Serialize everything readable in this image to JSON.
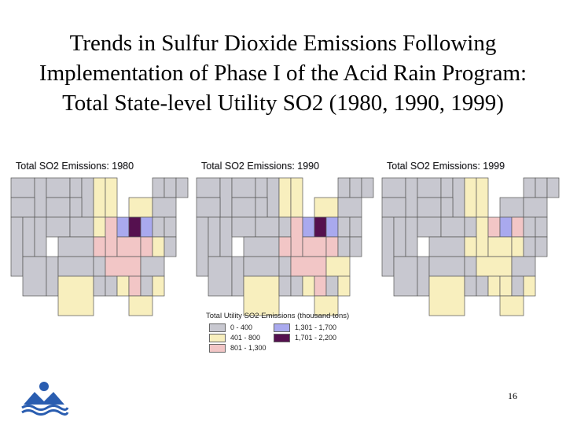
{
  "slide": {
    "title_lines": [
      "Trends in Sulfur Dioxide Emissions Following",
      "Implementation of Phase I of the Acid Rain Program:",
      "Total State-level Utility SO2 (1980, 1990, 1999)"
    ],
    "page_number": "16"
  },
  "maps": [
    {
      "caption": "Total SO2 Emissions: 1980",
      "class_by_state": {
        "OH": 4,
        "IN": 3,
        "PA": 3,
        "IL": 2,
        "MO": 2,
        "KY": 2,
        "WV": 2,
        "TN": 2,
        "GA": 2,
        "WI": 1,
        "MI": 1,
        "IA": 1,
        "NY": 1,
        "TX": 1,
        "AL": 1,
        "FL": 1,
        "NC": 1,
        "MD": 1
      }
    },
    {
      "caption": "Total SO2 Emissions: 1990",
      "class_by_state": {
        "OH": 4,
        "IN": 3,
        "PA": 3,
        "IL": 2,
        "MO": 2,
        "KY": 2,
        "WV": 2,
        "TN": 2,
        "GA": 2,
        "WI": 1,
        "MI": 1,
        "TX": 1,
        "AL": 1,
        "FL": 1,
        "NC": 1,
        "NY": 1,
        "VA": 1
      }
    },
    {
      "caption": "Total SO2 Emissions: 1999",
      "class_by_state": {
        "OH": 3,
        "IN": 2,
        "PA": 2,
        "IL": 1,
        "MO": 1,
        "KY": 1,
        "WV": 1,
        "TN": 1,
        "GA": 1,
        "TX": 1,
        "AL": 1,
        "FL": 1,
        "NC": 1,
        "MI": 1,
        "WI": 1
      }
    }
  ],
  "legend": {
    "title": "Total Utility SO2 Emissions (thousand tons)",
    "classes": [
      {
        "label": "0 - 400",
        "color": "#c8c8d0"
      },
      {
        "label": "401 - 800",
        "color": "#f8efbe"
      },
      {
        "label": "801 - 1,300",
        "color": "#f2c6c6"
      },
      {
        "label": "1,301 - 1,700",
        "color": "#a9a9ee"
      },
      {
        "label": "1,701 - 2,200",
        "color": "#55104f"
      }
    ]
  },
  "colors": {
    "state_border": "#555555"
  },
  "logo": {
    "icon": "agency-logo-icon"
  }
}
